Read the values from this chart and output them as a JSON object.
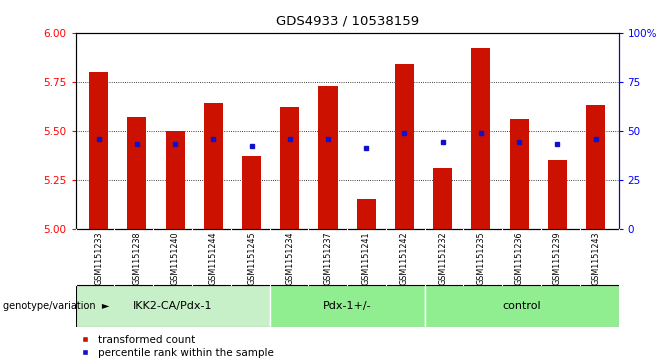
{
  "title": "GDS4933 / 10538159",
  "samples": [
    "GSM1151233",
    "GSM1151238",
    "GSM1151240",
    "GSM1151244",
    "GSM1151245",
    "GSM1151234",
    "GSM1151237",
    "GSM1151241",
    "GSM1151242",
    "GSM1151232",
    "GSM1151235",
    "GSM1151236",
    "GSM1151239",
    "GSM1151243"
  ],
  "bar_heights": [
    5.8,
    5.57,
    5.5,
    5.64,
    5.37,
    5.62,
    5.73,
    5.15,
    5.84,
    5.31,
    5.92,
    5.56,
    5.35,
    5.63
  ],
  "blue_dots": [
    5.46,
    5.43,
    5.43,
    5.46,
    5.42,
    5.46,
    5.46,
    5.41,
    5.49,
    5.44,
    5.49,
    5.44,
    5.43,
    5.46
  ],
  "groups": [
    {
      "label": "IKK2-CA/Pdx-1",
      "start": 0,
      "end": 5,
      "color": "#c8f0c8"
    },
    {
      "label": "Pdx-1+/-",
      "start": 5,
      "end": 9,
      "color": "#90ee90"
    },
    {
      "label": "control",
      "start": 9,
      "end": 14,
      "color": "#90ee90"
    }
  ],
  "ylim_left": [
    5.0,
    6.0
  ],
  "ylim_right": [
    0,
    100
  ],
  "yticks_left": [
    5.0,
    5.25,
    5.5,
    5.75,
    6.0
  ],
  "yticks_right": [
    0,
    25,
    50,
    75,
    100
  ],
  "bar_color": "#cc1100",
  "dot_color": "#1111cc",
  "bar_width": 0.5,
  "tick_bg_color": "#d8d8d8",
  "legend_items": [
    "transformed count",
    "percentile rank within the sample"
  ],
  "genotype_label": "genotype/variation"
}
